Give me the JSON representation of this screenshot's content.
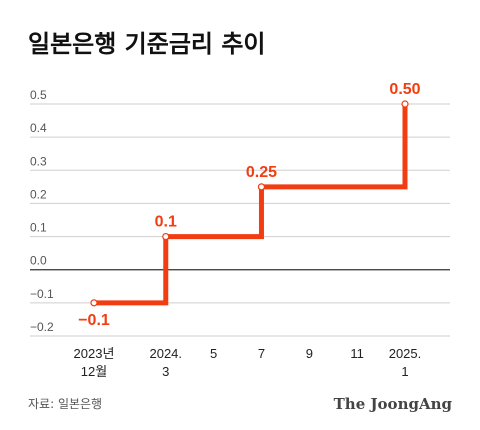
{
  "title": "일본은행 기준금리 추이",
  "source": "자료: 일본은행",
  "brand": "The JoongAng",
  "colors": {
    "series": "#f23d12",
    "zero_line": "#333333",
    "grid": "#cfcfcf",
    "text": "#111111"
  },
  "chart_data": {
    "type": "line",
    "step": true,
    "title": "일본은행 기준금리 추이",
    "xlabel": "",
    "ylabel": "",
    "ylim": [
      -0.2,
      0.5
    ],
    "grid": true,
    "y_ticks": [
      "0.5",
      "0.4",
      "0.3",
      "0.2",
      "0.1",
      "0.0",
      "−0.1",
      "−0.2"
    ],
    "x_ticks": [
      {
        "label": "2023년",
        "sub": "12월",
        "x": 0
      },
      {
        "label": "2024.",
        "sub": "3",
        "x": 3
      },
      {
        "label": "5",
        "sub": "",
        "x": 5
      },
      {
        "label": "7",
        "sub": "",
        "x": 7
      },
      {
        "label": "9",
        "sub": "",
        "x": 9
      },
      {
        "label": "11",
        "sub": "",
        "x": 11
      },
      {
        "label": "2025.",
        "sub": "1",
        "x": 13
      }
    ],
    "series": [
      {
        "points": [
          {
            "x": 0,
            "y": -0.1,
            "label": "−0.1"
          },
          {
            "x": 3,
            "y": 0.1,
            "label": "0.1"
          },
          {
            "x": 7,
            "y": 0.25,
            "label": "0.25"
          },
          {
            "x": 13,
            "y": 0.5,
            "label": "0.50"
          }
        ]
      }
    ]
  }
}
